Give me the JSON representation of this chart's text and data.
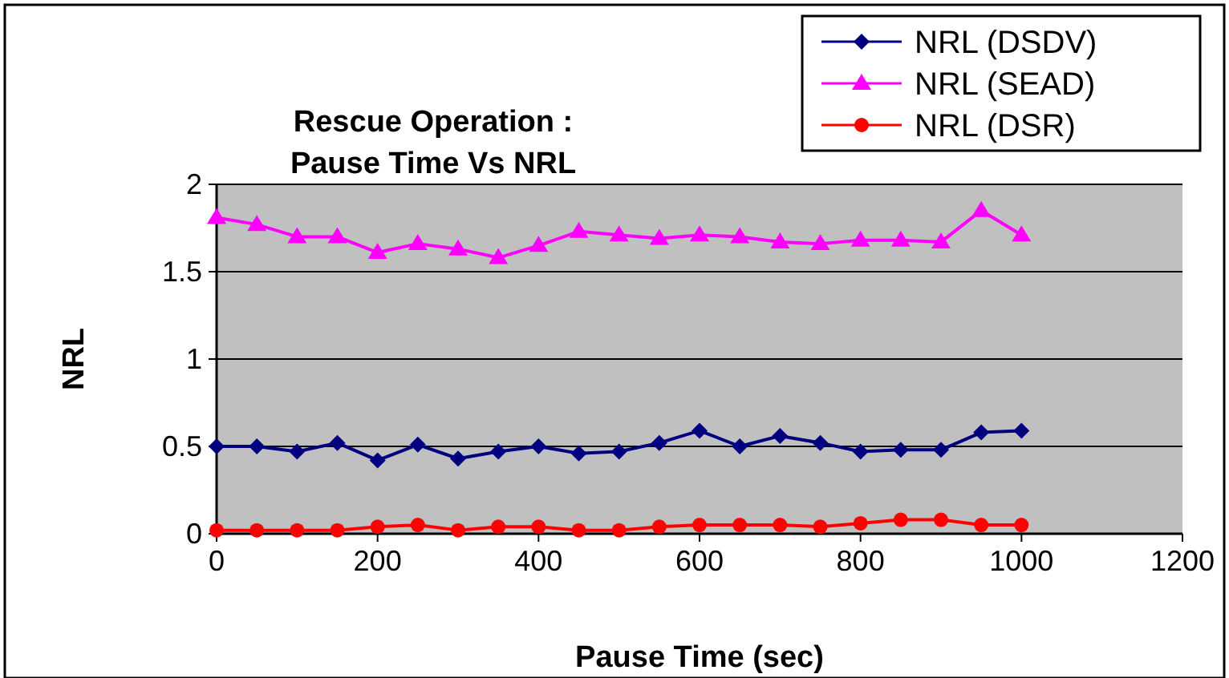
{
  "chart_data": {
    "type": "line",
    "title": "Rescue Operation :\nPause Time Vs NRL",
    "xlabel": "Pause Time (sec)",
    "ylabel": "NRL",
    "x": [
      0,
      50,
      100,
      150,
      200,
      250,
      300,
      350,
      400,
      450,
      500,
      550,
      600,
      650,
      700,
      750,
      800,
      850,
      900,
      950,
      1000
    ],
    "xlim": [
      0,
      1200
    ],
    "xticks": [
      0,
      200,
      400,
      600,
      800,
      1000,
      1200
    ],
    "ylim": [
      0,
      2
    ],
    "yticks": [
      0,
      0.5,
      1,
      1.5,
      2
    ],
    "grid": "y",
    "legend": "top right",
    "series": [
      {
        "name": "NRL (DSDV)",
        "color": "#000080",
        "marker": "diamond",
        "values": [
          0.5,
          0.5,
          0.47,
          0.52,
          0.42,
          0.51,
          0.43,
          0.47,
          0.5,
          0.46,
          0.47,
          0.52,
          0.59,
          0.5,
          0.56,
          0.52,
          0.47,
          0.48,
          0.48,
          0.58,
          0.59
        ]
      },
      {
        "name": "NRL (SEAD)",
        "color": "#ff00ff",
        "marker": "triangle",
        "values": [
          1.81,
          1.77,
          1.7,
          1.7,
          1.61,
          1.66,
          1.63,
          1.58,
          1.65,
          1.73,
          1.71,
          1.69,
          1.71,
          1.7,
          1.67,
          1.66,
          1.68,
          1.68,
          1.67,
          1.85,
          1.71
        ]
      },
      {
        "name": "NRL (DSR)",
        "color": "#ff0000",
        "marker": "circle",
        "values": [
          0.02,
          0.02,
          0.02,
          0.02,
          0.04,
          0.05,
          0.02,
          0.04,
          0.04,
          0.02,
          0.02,
          0.04,
          0.05,
          0.05,
          0.05,
          0.04,
          0.06,
          0.08,
          0.08,
          0.05,
          0.05
        ]
      }
    ]
  }
}
